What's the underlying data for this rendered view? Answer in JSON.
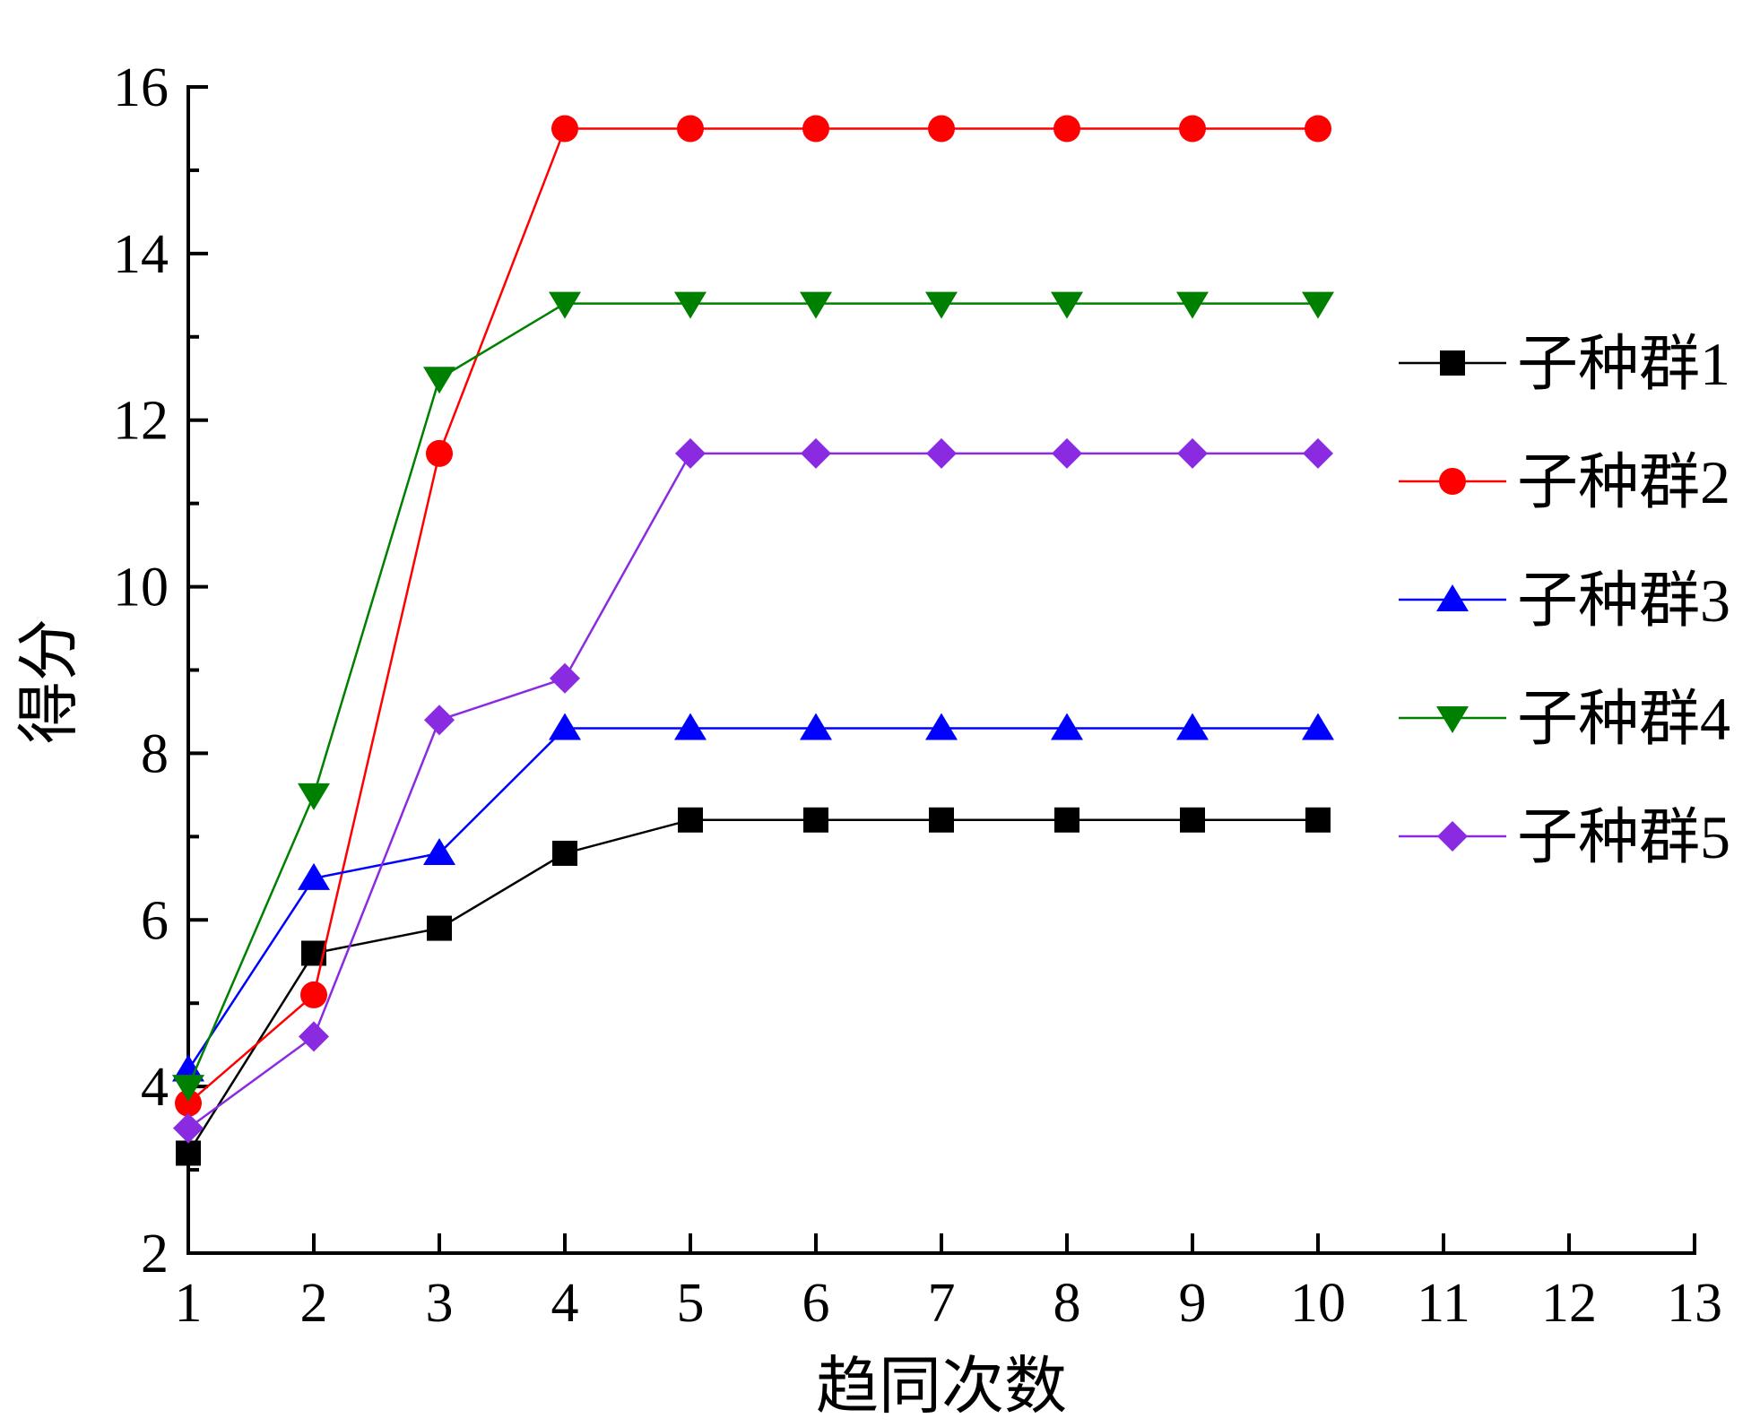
{
  "chart_data": {
    "type": "line",
    "xlabel": "趋同次数",
    "ylabel": "得分",
    "xlim": [
      1,
      13
    ],
    "ylim": [
      2,
      16
    ],
    "xticks": [
      1,
      2,
      3,
      4,
      5,
      6,
      7,
      8,
      9,
      10,
      11,
      12,
      13
    ],
    "yticks": [
      2,
      4,
      6,
      8,
      10,
      12,
      14,
      16
    ],
    "grid": false,
    "legend_position": "right",
    "x": [
      1,
      2,
      3,
      4,
      5,
      6,
      7,
      8,
      9,
      10
    ],
    "series": [
      {
        "name": "子种群1",
        "marker": "square",
        "color": "#000000",
        "values": [
          3.2,
          5.6,
          5.9,
          6.8,
          7.2,
          7.2,
          7.2,
          7.2,
          7.2,
          7.2
        ]
      },
      {
        "name": "子种群2",
        "marker": "circle",
        "color": "#ff0000",
        "values": [
          3.8,
          5.1,
          11.6,
          15.5,
          15.5,
          15.5,
          15.5,
          15.5,
          15.5,
          15.5
        ]
      },
      {
        "name": "子种群3",
        "marker": "triangle-up",
        "color": "#0000ff",
        "values": [
          4.2,
          6.5,
          6.8,
          8.3,
          8.3,
          8.3,
          8.3,
          8.3,
          8.3,
          8.3
        ]
      },
      {
        "name": "子种群4",
        "marker": "triangle-down",
        "color": "#008000",
        "values": [
          4.0,
          7.5,
          12.5,
          13.4,
          13.4,
          13.4,
          13.4,
          13.4,
          13.4,
          13.4
        ]
      },
      {
        "name": "子种群5",
        "marker": "diamond",
        "color": "#8a2be2",
        "values": [
          3.5,
          4.6,
          8.4,
          8.9,
          11.6,
          11.6,
          11.6,
          11.6,
          11.6,
          11.6
        ]
      }
    ]
  }
}
